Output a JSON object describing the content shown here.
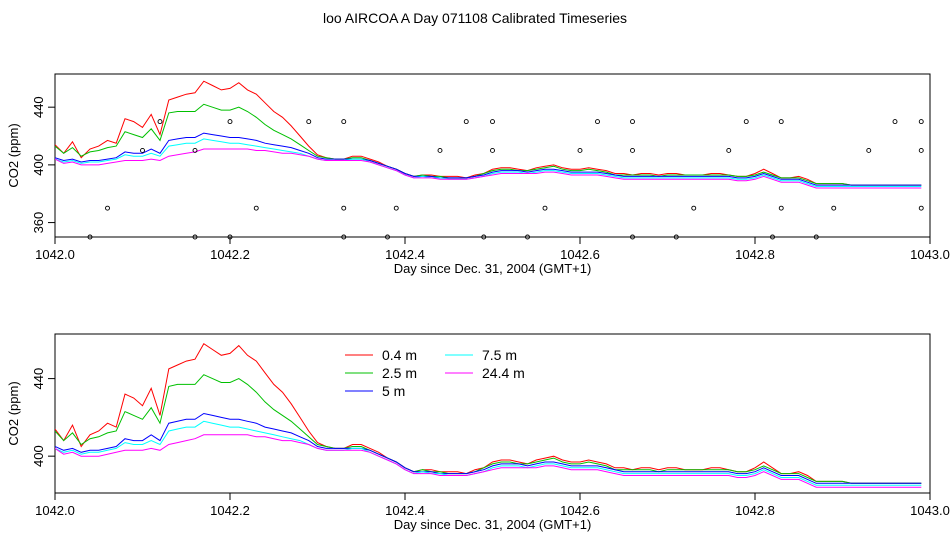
{
  "title": "loo AIRCOA A  Day 071108  Calibrated Timeseries",
  "colors": {
    "0.4 m": "#ff0000",
    "2.5 m": "#00c000",
    "5 m": "#0000ff",
    "7.5 m": "#00ffff",
    "24.4 m": "#ff00ff"
  },
  "chart_data": [
    {
      "type": "line",
      "title": "",
      "xlabel": "Day since Dec. 31, 2004 (GMT+1)",
      "ylabel": "CO2 (ppm)",
      "xlim": [
        1042.0,
        1043.0
      ],
      "ylim": [
        350,
        463
      ],
      "xticks": [
        1042.0,
        1042.2,
        1042.4,
        1042.6,
        1042.8,
        1043.0
      ],
      "xtick_labels": [
        "1042.0",
        "1042.2",
        "1042.4",
        "1042.6",
        "1042.8",
        "1043.0"
      ],
      "yticks": [
        360,
        400,
        440
      ],
      "ytick_labels": [
        "360",
        "400",
        "440"
      ],
      "grid": false,
      "legend": null,
      "x": [
        1042.0,
        1042.01,
        1042.02,
        1042.03,
        1042.04,
        1042.05,
        1042.06,
        1042.07,
        1042.08,
        1042.09,
        1042.1,
        1042.11,
        1042.12,
        1042.13,
        1042.14,
        1042.15,
        1042.16,
        1042.17,
        1042.18,
        1042.19,
        1042.2,
        1042.21,
        1042.22,
        1042.23,
        1042.24,
        1042.25,
        1042.26,
        1042.27,
        1042.28,
        1042.29,
        1042.3,
        1042.31,
        1042.32,
        1042.33,
        1042.34,
        1042.35,
        1042.36,
        1042.37,
        1042.38,
        1042.39,
        1042.4,
        1042.41,
        1042.42,
        1042.43,
        1042.44,
        1042.45,
        1042.46,
        1042.47,
        1042.48,
        1042.49,
        1042.5,
        1042.51,
        1042.52,
        1042.53,
        1042.54,
        1042.55,
        1042.56,
        1042.57,
        1042.58,
        1042.59,
        1042.6,
        1042.61,
        1042.62,
        1042.63,
        1042.64,
        1042.65,
        1042.66,
        1042.67,
        1042.68,
        1042.69,
        1042.7,
        1042.71,
        1042.72,
        1042.73,
        1042.74,
        1042.75,
        1042.76,
        1042.77,
        1042.78,
        1042.79,
        1042.8,
        1042.81,
        1042.82,
        1042.83,
        1042.84,
        1042.85,
        1042.86,
        1042.87,
        1042.88,
        1042.89,
        1042.9,
        1042.91,
        1042.92,
        1042.93,
        1042.94,
        1042.95,
        1042.96,
        1042.97,
        1042.98,
        1042.99
      ],
      "series": [
        {
          "name": "0.4 m",
          "values": [
            414,
            408,
            416,
            405,
            411,
            413,
            417,
            415,
            432,
            430,
            426,
            435,
            421,
            445,
            447,
            449,
            450,
            458,
            455,
            452,
            453,
            457,
            452,
            449,
            443,
            437,
            433,
            427,
            420,
            413,
            407,
            405,
            404,
            404,
            406,
            406,
            404,
            402,
            399,
            397,
            394,
            392,
            393,
            393,
            392,
            392,
            392,
            391,
            393,
            394,
            397,
            398,
            398,
            397,
            396,
            398,
            399,
            400,
            398,
            397,
            397,
            398,
            397,
            396,
            394,
            394,
            393,
            394,
            394,
            393,
            394,
            394,
            393,
            393,
            393,
            394,
            394,
            393,
            392,
            392,
            394,
            397,
            394,
            391,
            391,
            392,
            390,
            387,
            387,
            387,
            387,
            386,
            386,
            386,
            386,
            386,
            386,
            386,
            386,
            386
          ]
        },
        {
          "name": "2.5 m",
          "values": [
            413,
            408,
            412,
            406,
            409,
            410,
            412,
            413,
            423,
            421,
            419,
            425,
            417,
            436,
            437,
            437,
            437,
            442,
            440,
            438,
            438,
            440,
            437,
            433,
            428,
            424,
            421,
            418,
            414,
            410,
            406,
            405,
            404,
            404,
            405,
            405,
            403,
            401,
            399,
            397,
            394,
            392,
            393,
            392,
            392,
            391,
            391,
            391,
            392,
            394,
            396,
            397,
            397,
            396,
            396,
            397,
            398,
            399,
            397,
            396,
            396,
            397,
            396,
            395,
            393,
            393,
            393,
            393,
            393,
            392,
            393,
            393,
            393,
            393,
            393,
            393,
            393,
            393,
            392,
            392,
            393,
            395,
            393,
            391,
            391,
            391,
            389,
            387,
            387,
            387,
            387,
            386,
            386,
            386,
            386,
            386,
            386,
            386,
            386,
            386
          ]
        },
        {
          "name": "5 m",
          "values": [
            405,
            403,
            404,
            402,
            403,
            403,
            404,
            405,
            409,
            408,
            408,
            411,
            408,
            417,
            418,
            419,
            419,
            422,
            421,
            420,
            419,
            419,
            418,
            417,
            415,
            414,
            413,
            412,
            410,
            408,
            405,
            404,
            404,
            404,
            404,
            404,
            403,
            401,
            399,
            397,
            394,
            392,
            392,
            392,
            391,
            391,
            391,
            391,
            392,
            393,
            395,
            396,
            396,
            396,
            395,
            396,
            397,
            397,
            396,
            395,
            395,
            395,
            395,
            394,
            393,
            392,
            392,
            392,
            392,
            392,
            392,
            392,
            392,
            392,
            392,
            392,
            392,
            392,
            391,
            391,
            392,
            394,
            392,
            390,
            390,
            390,
            388,
            386,
            386,
            386,
            386,
            386,
            386,
            386,
            386,
            386,
            386,
            386,
            386,
            386
          ]
        },
        {
          "name": "7.5 m",
          "values": [
            404,
            402,
            403,
            401,
            402,
            402,
            403,
            404,
            407,
            406,
            406,
            408,
            406,
            413,
            414,
            415,
            415,
            418,
            417,
            416,
            415,
            415,
            414,
            413,
            412,
            411,
            410,
            409,
            408,
            406,
            404,
            403,
            403,
            403,
            404,
            404,
            402,
            400,
            398,
            396,
            393,
            391,
            392,
            391,
            391,
            390,
            390,
            390,
            391,
            392,
            394,
            395,
            395,
            395,
            394,
            395,
            396,
            396,
            395,
            394,
            394,
            394,
            394,
            393,
            392,
            391,
            391,
            391,
            391,
            391,
            391,
            391,
            391,
            391,
            391,
            391,
            391,
            391,
            390,
            390,
            391,
            393,
            391,
            389,
            389,
            389,
            387,
            385,
            385,
            385,
            385,
            385,
            385,
            385,
            385,
            385,
            385,
            385,
            385,
            385
          ]
        },
        {
          "name": "24.4 m",
          "values": [
            404,
            401,
            402,
            400,
            400,
            400,
            401,
            402,
            403,
            403,
            403,
            404,
            403,
            406,
            407,
            408,
            409,
            411,
            411,
            411,
            411,
            411,
            411,
            410,
            410,
            409,
            408,
            408,
            407,
            406,
            404,
            403,
            403,
            403,
            403,
            403,
            402,
            400,
            398,
            396,
            393,
            391,
            391,
            391,
            390,
            390,
            390,
            390,
            391,
            392,
            393,
            394,
            394,
            394,
            394,
            394,
            395,
            395,
            394,
            393,
            393,
            393,
            393,
            392,
            391,
            390,
            390,
            390,
            390,
            390,
            390,
            390,
            390,
            390,
            390,
            390,
            390,
            390,
            389,
            389,
            390,
            392,
            390,
            388,
            388,
            388,
            386,
            384,
            384,
            384,
            384,
            384,
            384,
            384,
            384,
            384,
            384,
            384,
            384,
            384
          ]
        }
      ],
      "points": {
        "x": [
          1042.04,
          1042.06,
          1042.1,
          1042.12,
          1042.16,
          1042.16,
          1042.2,
          1042.2,
          1042.23,
          1042.29,
          1042.33,
          1042.33,
          1042.33,
          1042.38,
          1042.39,
          1042.44,
          1042.47,
          1042.49,
          1042.5,
          1042.5,
          1042.54,
          1042.56,
          1042.6,
          1042.62,
          1042.66,
          1042.66,
          1042.66,
          1042.71,
          1042.73,
          1042.77,
          1042.79,
          1042.82,
          1042.83,
          1042.83,
          1042.87,
          1042.89,
          1042.93,
          1042.96,
          1042.99,
          1042.99,
          1042.99
        ],
        "y": [
          350,
          370,
          410,
          430,
          350,
          410,
          430,
          350,
          370,
          430,
          370,
          430,
          350,
          350,
          370,
          410,
          430,
          350,
          410,
          430,
          350,
          370,
          410,
          430,
          350,
          410,
          430,
          350,
          370,
          410,
          430,
          350,
          370,
          430,
          350,
          370,
          410,
          430,
          370,
          410,
          430
        ]
      }
    },
    {
      "type": "line",
      "title": "",
      "xlabel": "Day since Dec. 31, 2004 (GMT+1)",
      "ylabel": "CO2 (ppm)",
      "xlim": [
        1042.0,
        1043.0
      ],
      "ylim": [
        381,
        463
      ],
      "xticks": [
        1042.0,
        1042.2,
        1042.4,
        1042.6,
        1042.8,
        1043.0
      ],
      "xtick_labels": [
        "1042.0",
        "1042.2",
        "1042.4",
        "1042.6",
        "1042.8",
        "1043.0"
      ],
      "yticks": [
        400,
        440
      ],
      "ytick_labels": [
        "400",
        "440"
      ],
      "grid": false,
      "legend": {
        "position": "top-left",
        "entries": [
          "0.4 m",
          "2.5 m",
          "5 m",
          "7.5 m",
          "24.4 m"
        ]
      },
      "series_ref": "same as chart_data[0].series"
    }
  ]
}
